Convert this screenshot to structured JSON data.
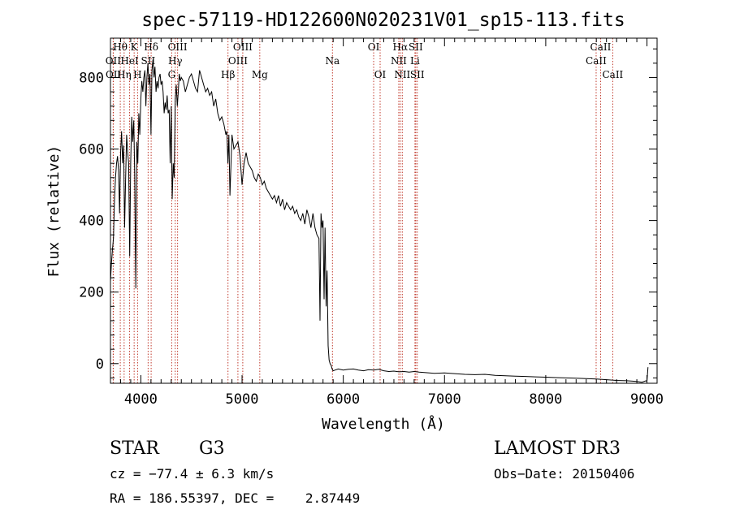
{
  "chart_data": {
    "type": "line",
    "title": "spec-57119-HD122600N020231V01_sp15-113.fits",
    "xlabel": "Wavelength (Å)",
    "ylabel": "Flux (relative)",
    "xlim": [
      3700,
      9100
    ],
    "ylim": [
      -55,
      910
    ],
    "x_ticks": [
      4000,
      5000,
      6000,
      7000,
      8000,
      9000
    ],
    "x_tick_labels": [
      "4000",
      "5000",
      "6000",
      "7000",
      "8000",
      "9000"
    ],
    "y_ticks": [
      0,
      200,
      400,
      600,
      800
    ],
    "y_tick_labels": [
      "0",
      "200",
      "400",
      "600",
      "800"
    ],
    "series": [
      {
        "name": "flux",
        "x": [
          3700,
          3710,
          3720,
          3730,
          3740,
          3750,
          3760,
          3770,
          3780,
          3790,
          3800,
          3810,
          3820,
          3830,
          3840,
          3850,
          3860,
          3870,
          3880,
          3890,
          3900,
          3910,
          3920,
          3930,
          3940,
          3950,
          3960,
          3970,
          3980,
          3990,
          4000,
          4010,
          4020,
          4030,
          4040,
          4050,
          4060,
          4070,
          4080,
          4090,
          4100,
          4110,
          4120,
          4130,
          4140,
          4150,
          4160,
          4170,
          4180,
          4190,
          4200,
          4210,
          4220,
          4230,
          4240,
          4250,
          4260,
          4270,
          4280,
          4290,
          4300,
          4310,
          4320,
          4330,
          4340,
          4350,
          4360,
          4370,
          4380,
          4390,
          4400,
          4420,
          4440,
          4460,
          4480,
          4500,
          4520,
          4540,
          4560,
          4580,
          4600,
          4620,
          4640,
          4660,
          4680,
          4700,
          4720,
          4740,
          4760,
          4780,
          4800,
          4820,
          4840,
          4850,
          4860,
          4870,
          4880,
          4900,
          4920,
          4940,
          4960,
          4980,
          5000,
          5020,
          5040,
          5060,
          5080,
          5100,
          5120,
          5140,
          5160,
          5180,
          5200,
          5220,
          5240,
          5260,
          5280,
          5300,
          5320,
          5340,
          5360,
          5380,
          5400,
          5420,
          5440,
          5460,
          5480,
          5500,
          5520,
          5540,
          5560,
          5580,
          5600,
          5620,
          5640,
          5660,
          5680,
          5700,
          5720,
          5740,
          5760,
          5770,
          5780,
          5790,
          5800,
          5810,
          5820,
          5830,
          5840,
          5850,
          5860,
          5870,
          5880,
          5890,
          5900,
          5920,
          5950,
          6000,
          6050,
          6100,
          6150,
          6200,
          6250,
          6300,
          6350,
          6400,
          6450,
          6500,
          6550,
          6600,
          6650,
          6700,
          6750,
          6800,
          6900,
          7000,
          7100,
          7200,
          7300,
          7400,
          7500,
          7600,
          7700,
          7800,
          7900,
          8000,
          8100,
          8200,
          8300,
          8400,
          8500,
          8600,
          8700,
          8800,
          8900,
          8950,
          8990,
          9000,
          9010
        ],
        "y": [
          230,
          280,
          320,
          350,
          460,
          520,
          560,
          580,
          540,
          420,
          590,
          650,
          560,
          610,
          380,
          520,
          640,
          590,
          560,
          300,
          560,
          690,
          620,
          680,
          520,
          210,
          620,
          560,
          700,
          640,
          740,
          790,
          760,
          800,
          820,
          720,
          800,
          840,
          780,
          810,
          640,
          820,
          850,
          800,
          830,
          760,
          790,
          770,
          800,
          810,
          780,
          790,
          760,
          700,
          730,
          710,
          750,
          700,
          710,
          560,
          720,
          460,
          560,
          520,
          740,
          780,
          720,
          760,
          810,
          790,
          800,
          790,
          760,
          780,
          800,
          810,
          790,
          770,
          760,
          820,
          800,
          780,
          760,
          770,
          750,
          760,
          720,
          740,
          700,
          680,
          690,
          670,
          640,
          650,
          560,
          640,
          470,
          640,
          600,
          610,
          620,
          580,
          500,
          560,
          590,
          560,
          550,
          540,
          520,
          510,
          530,
          520,
          500,
          510,
          490,
          480,
          470,
          460,
          470,
          450,
          470,
          440,
          460,
          430,
          450,
          440,
          430,
          440,
          420,
          430,
          410,
          400,
          420,
          390,
          430,
          410,
          380,
          420,
          380,
          360,
          350,
          120,
          420,
          380,
          400,
          180,
          380,
          160,
          260,
          50,
          10,
          0,
          -5,
          -15,
          -20,
          -18,
          -15,
          -18,
          -16,
          -15,
          -18,
          -20,
          -17,
          -18,
          -16,
          -20,
          -22,
          -21,
          -23,
          -22,
          -24,
          -22,
          -24,
          -25,
          -27,
          -26,
          -28,
          -30,
          -31,
          -30,
          -33,
          -34,
          -35,
          -36,
          -37,
          -38,
          -39,
          -40,
          -41,
          -42,
          -43,
          -45,
          -47,
          -48,
          -50,
          -52,
          -48,
          -50,
          -10
        ]
      }
    ],
    "line_markers": [
      {
        "label": "Hθ",
        "wl": 3797,
        "row": 0
      },
      {
        "label": "OII",
        "wl": 3727,
        "row": 1
      },
      {
        "label": "OII",
        "wl": 3729,
        "row": 2
      },
      {
        "label": "K",
        "wl": 3934,
        "row": 0
      },
      {
        "label": "HeI",
        "wl": 3889,
        "row": 1
      },
      {
        "label": "Hη",
        "wl": 3835,
        "row": 2
      },
      {
        "label": "Hδ",
        "wl": 4102,
        "row": 0
      },
      {
        "label": "SII",
        "wl": 4072,
        "row": 1
      },
      {
        "label": "H",
        "wl": 3968,
        "row": 2
      },
      {
        "label": "OIII",
        "wl": 4363,
        "row": 0
      },
      {
        "label": "Hγ",
        "wl": 4340,
        "row": 1
      },
      {
        "label": "G",
        "wl": 4305,
        "row": 2
      },
      {
        "label": "OIII",
        "wl": 5007,
        "row": 0
      },
      {
        "label": "OIII",
        "wl": 4959,
        "row": 1
      },
      {
        "label": "Hβ",
        "wl": 4861,
        "row": 2
      },
      {
        "label": "Mg",
        "wl": 5175,
        "row": 2
      },
      {
        "label": "Na",
        "wl": 5893,
        "row": 1
      },
      {
        "label": "OI",
        "wl": 6300,
        "row": 0
      },
      {
        "label": "OI",
        "wl": 6364,
        "row": 2
      },
      {
        "label": "Hα",
        "wl": 6563,
        "row": 0
      },
      {
        "label": "NII",
        "wl": 6548,
        "row": 1
      },
      {
        "label": "NII",
        "wl": 6583,
        "row": 2
      },
      {
        "label": "SII",
        "wl": 6716,
        "row": 0
      },
      {
        "label": "Li",
        "wl": 6708,
        "row": 1
      },
      {
        "label": "SII",
        "wl": 6731,
        "row": 2
      },
      {
        "label": "CaII",
        "wl": 8542,
        "row": 0
      },
      {
        "label": "CaII",
        "wl": 8498,
        "row": 1
      },
      {
        "label": "CaII",
        "wl": 8662,
        "row": 2
      }
    ]
  },
  "info": {
    "object_class": "STAR",
    "subclass": "G3",
    "survey": "LAMOST DR3",
    "cz": "cz = −77.4 ± 6.3 km/s",
    "obs_date": "Obs−Date: 20150406",
    "radec": "RA = 186.55397, DEC =    2.87449"
  }
}
